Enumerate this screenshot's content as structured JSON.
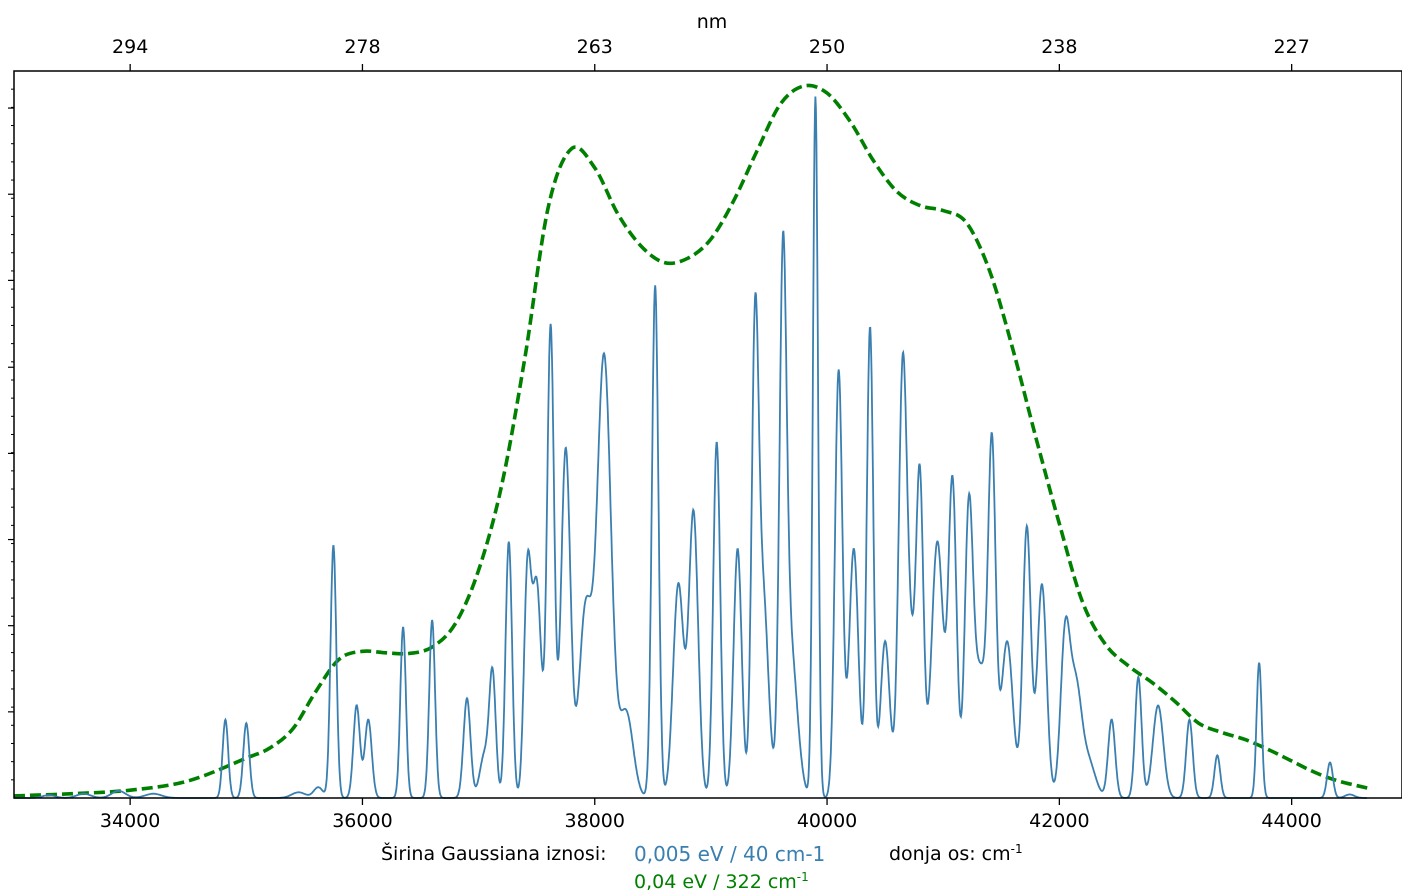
{
  "chart_data": {
    "type": "line",
    "top_axis": {
      "label": "nm",
      "ticks": [
        {
          "label": "294",
          "wavenumber": 34000
        },
        {
          "label": "278",
          "wavenumber": 36000
        },
        {
          "label": "263",
          "wavenumber": 38000
        },
        {
          "label": "250",
          "wavenumber": 40000
        },
        {
          "label": "238",
          "wavenumber": 42000
        },
        {
          "label": "227",
          "wavenumber": 44000
        }
      ]
    },
    "x_ticks": [
      34000,
      36000,
      38000,
      40000,
      42000,
      44000
    ],
    "x_tick_labels": [
      "34000",
      "36000",
      "38000",
      "40000",
      "42000",
      "44000"
    ],
    "xlim": [
      33000,
      44950
    ],
    "ylim": [
      0,
      1.0
    ],
    "y_minor_ticks": [
      0.121,
      0.242,
      0.363,
      0.484,
      0.605,
      0.727,
      0.848,
      0.969
    ],
    "y_tick_labels_shown": false,
    "grid": false,
    "series": [
      {
        "name": "0,005 eV / 40 cm-1",
        "color": "#3a7fb0",
        "style": "solid",
        "peaks": [
          [
            33300,
            0.004,
            55
          ],
          [
            33600,
            0.006,
            60
          ],
          [
            33900,
            0.01,
            60
          ],
          [
            34200,
            0.006,
            70
          ],
          [
            34820,
            0.11,
            24
          ],
          [
            35000,
            0.105,
            26
          ],
          [
            35450,
            0.008,
            60
          ],
          [
            35620,
            0.015,
            40
          ],
          [
            35750,
            0.355,
            25
          ],
          [
            35950,
            0.13,
            28
          ],
          [
            36050,
            0.11,
            30
          ],
          [
            36350,
            0.24,
            24
          ],
          [
            36600,
            0.25,
            25
          ],
          [
            36900,
            0.14,
            30
          ],
          [
            37050,
            0.06,
            40
          ],
          [
            37120,
            0.17,
            28
          ],
          [
            37260,
            0.36,
            28
          ],
          [
            37420,
            0.3,
            30
          ],
          [
            37500,
            0.3,
            40
          ],
          [
            37620,
            0.66,
            30
          ],
          [
            37750,
            0.49,
            40
          ],
          [
            37920,
            0.26,
            55
          ],
          [
            38080,
            0.62,
            60
          ],
          [
            38270,
            0.12,
            60
          ],
          [
            38520,
            0.72,
            28
          ],
          [
            38720,
            0.3,
            45
          ],
          [
            38850,
            0.4,
            40
          ],
          [
            39050,
            0.5,
            30
          ],
          [
            39230,
            0.35,
            35
          ],
          [
            39380,
            0.62,
            30
          ],
          [
            39450,
            0.28,
            45
          ],
          [
            39620,
            0.66,
            30
          ],
          [
            39680,
            0.22,
            60
          ],
          [
            39900,
            0.985,
            22
          ],
          [
            40100,
            0.6,
            32
          ],
          [
            40230,
            0.35,
            40
          ],
          [
            40370,
            0.66,
            28
          ],
          [
            40500,
            0.22,
            40
          ],
          [
            40650,
            0.52,
            35
          ],
          [
            40720,
            0.2,
            60
          ],
          [
            40800,
            0.38,
            30
          ],
          [
            40950,
            0.36,
            50
          ],
          [
            41080,
            0.44,
            35
          ],
          [
            41220,
            0.38,
            35
          ],
          [
            41320,
            0.18,
            60
          ],
          [
            41420,
            0.46,
            32
          ],
          [
            41550,
            0.22,
            50
          ],
          [
            41720,
            0.38,
            35
          ],
          [
            41850,
            0.3,
            40
          ],
          [
            42050,
            0.22,
            40
          ],
          [
            42140,
            0.15,
            50
          ],
          [
            42250,
            0.05,
            60
          ],
          [
            42450,
            0.11,
            30
          ],
          [
            42680,
            0.17,
            28
          ],
          [
            42850,
            0.13,
            45
          ],
          [
            43120,
            0.11,
            28
          ],
          [
            43360,
            0.06,
            25
          ],
          [
            43720,
            0.19,
            22
          ],
          [
            44330,
            0.05,
            25
          ],
          [
            44500,
            0.005,
            40
          ]
        ]
      },
      {
        "name": "0,04 eV / 322 cm-1",
        "color": "#008000",
        "style": "dashed",
        "points": [
          [
            33000,
            0.003
          ],
          [
            33500,
            0.006
          ],
          [
            34000,
            0.011
          ],
          [
            34500,
            0.024
          ],
          [
            35000,
            0.056
          ],
          [
            35200,
            0.07
          ],
          [
            35400,
            0.097
          ],
          [
            35600,
            0.15
          ],
          [
            35800,
            0.195
          ],
          [
            36000,
            0.206
          ],
          [
            36200,
            0.204
          ],
          [
            36400,
            0.203
          ],
          [
            36600,
            0.212
          ],
          [
            36800,
            0.245
          ],
          [
            37000,
            0.32
          ],
          [
            37200,
            0.44
          ],
          [
            37400,
            0.62
          ],
          [
            37600,
            0.83
          ],
          [
            37800,
            0.912
          ],
          [
            38000,
            0.885
          ],
          [
            38200,
            0.82
          ],
          [
            38400,
            0.775
          ],
          [
            38600,
            0.752
          ],
          [
            38800,
            0.758
          ],
          [
            39000,
            0.785
          ],
          [
            39200,
            0.84
          ],
          [
            39400,
            0.91
          ],
          [
            39600,
            0.975
          ],
          [
            39800,
            1.0
          ],
          [
            40000,
            0.99
          ],
          [
            40200,
            0.95
          ],
          [
            40400,
            0.895
          ],
          [
            40600,
            0.852
          ],
          [
            40800,
            0.832
          ],
          [
            41000,
            0.825
          ],
          [
            41200,
            0.808
          ],
          [
            41400,
            0.74
          ],
          [
            41600,
            0.63
          ],
          [
            41800,
            0.505
          ],
          [
            42000,
            0.385
          ],
          [
            42200,
            0.275
          ],
          [
            42400,
            0.215
          ],
          [
            42600,
            0.185
          ],
          [
            42800,
            0.162
          ],
          [
            43000,
            0.135
          ],
          [
            43200,
            0.105
          ],
          [
            43400,
            0.092
          ],
          [
            43600,
            0.082
          ],
          [
            43800,
            0.068
          ],
          [
            44000,
            0.052
          ],
          [
            44200,
            0.036
          ],
          [
            44400,
            0.024
          ],
          [
            44650,
            0.014
          ]
        ]
      }
    ]
  },
  "caption": {
    "prefix": "Širina Gaussiana iznosi:",
    "blue_label": "0,005 eV / 40 cm-1",
    "green_label": "0,04 eV / 322 cm",
    "green_label_sup": "-1",
    "bottom_axis_text": "donja os: cm",
    "bottom_axis_sup": "-1"
  }
}
